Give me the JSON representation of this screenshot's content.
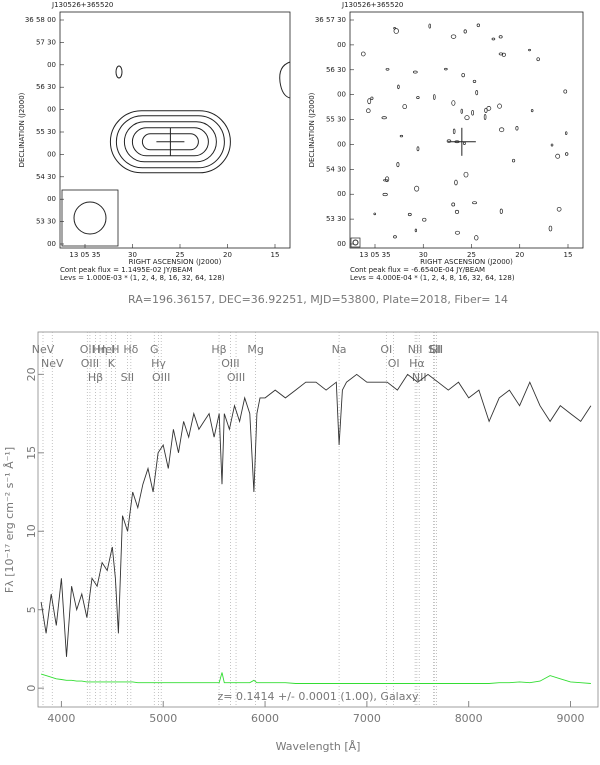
{
  "chart_data": [
    {
      "type": "contour-map",
      "title": "J130526+365520",
      "xlabel": "RIGHT ASCENSION (J2000)",
      "ylabel": "DECLINATION (J2000)",
      "xticklabels": [
        "13 05 35",
        "30",
        "25",
        "20",
        "15"
      ],
      "yticklabels": [
        "36 58 00",
        "57 30",
        "00",
        "56 30",
        "00",
        "55 30",
        "00",
        "54 30",
        "00",
        "53 30",
        "00"
      ],
      "peak": "Cont peak flux = 1.1495E-02 JY/BEAM",
      "levels": "Levs = 1.000E-03 * (1, 2, 4, 8, 16, 32, 64, 128)"
    },
    {
      "type": "noise-map",
      "title": "J130526+365520",
      "xlabel": "RIGHT ASCENSION (J2000)",
      "ylabel": "DECLINATION (J2000)",
      "xticklabels": [
        "13 05 35",
        "30",
        "25",
        "20",
        "15"
      ],
      "yticklabels": [
        "36 57 30",
        "00",
        "56 30",
        "00",
        "55 30",
        "00",
        "54 30",
        "00",
        "53 30",
        "00"
      ],
      "peak": "Cont peak flux = -6.6540E-04 JY/BEAM",
      "levels": "Levs = 4.000E-04 * (1, 2, 4, 8, 16, 32, 64, 128)"
    },
    {
      "type": "line",
      "title": "RA=196.36157, DEC=36.92251, MJD=53800, Plate=2018, Fiber= 14",
      "annotation": "z= 0.1414 +/- 0.0001 (1.00), Galaxy",
      "xlabel": "Wavelength [Å]",
      "ylabel": "Fλ [10⁻¹⁷ erg cm⁻² s⁻¹ Å⁻¹]",
      "xlim": [
        3770,
        9270
      ],
      "ylim": [
        -1.2,
        22.7
      ],
      "xticks": [
        4000,
        5000,
        6000,
        7000,
        8000,
        9000
      ],
      "yticks": [
        0,
        5,
        10,
        15,
        20
      ],
      "x": [
        3800,
        3850,
        3900,
        3950,
        4000,
        4050,
        4100,
        4150,
        4200,
        4250,
        4300,
        4350,
        4400,
        4450,
        4500,
        4530,
        4560,
        4600,
        4650,
        4700,
        4750,
        4800,
        4850,
        4900,
        4950,
        5000,
        5050,
        5100,
        5150,
        5200,
        5250,
        5300,
        5350,
        5400,
        5450,
        5500,
        5550,
        5577,
        5600,
        5650,
        5700,
        5750,
        5800,
        5850,
        5890,
        5920,
        5950,
        6000,
        6100,
        6200,
        6300,
        6400,
        6500,
        6600,
        6700,
        6727,
        6760,
        6800,
        6900,
        7000,
        7100,
        7200,
        7300,
        7400,
        7500,
        7600,
        7700,
        7800,
        7900,
        8000,
        8100,
        8200,
        8300,
        8400,
        8500,
        8600,
        8700,
        8800,
        8900,
        9000,
        9100,
        9200
      ],
      "series": [
        {
          "color": "#333333",
          "values": [
            5.5,
            3.5,
            6,
            4,
            7,
            2,
            6.5,
            5,
            6,
            4.5,
            7,
            6.5,
            8,
            7.5,
            9,
            7,
            3.5,
            11,
            10,
            12.5,
            11.5,
            13,
            14,
            12.5,
            15,
            15.5,
            14,
            16.5,
            15,
            17,
            16,
            17.5,
            16.5,
            17,
            17.5,
            16,
            17.5,
            13,
            17.5,
            16.5,
            18,
            17,
            18.5,
            17.5,
            12.5,
            17.5,
            18.5,
            18.5,
            19,
            18.5,
            19,
            19.5,
            19.5,
            19,
            19.5,
            15.5,
            19,
            19.5,
            20,
            19.5,
            19.5,
            19.5,
            19,
            20,
            19.5,
            20,
            19.5,
            19,
            19.5,
            18.5,
            19,
            17,
            18.5,
            19,
            18,
            19.5,
            18,
            17,
            18,
            17.5,
            17,
            18
          ]
        },
        {
          "color": "#33dd33",
          "values": [
            0.9,
            0.8,
            0.7,
            0.6,
            0.55,
            0.5,
            0.5,
            0.45,
            0.45,
            0.4,
            0.4,
            0.4,
            0.4,
            0.4,
            0.4,
            0.4,
            0.4,
            0.4,
            0.4,
            0.4,
            0.35,
            0.35,
            0.35,
            0.35,
            0.35,
            0.35,
            0.35,
            0.35,
            0.35,
            0.35,
            0.35,
            0.35,
            0.35,
            0.35,
            0.35,
            0.35,
            0.35,
            1.0,
            0.35,
            0.35,
            0.35,
            0.35,
            0.35,
            0.35,
            0.5,
            0.35,
            0.35,
            0.35,
            0.35,
            0.35,
            0.3,
            0.3,
            0.3,
            0.3,
            0.3,
            0.3,
            0.3,
            0.3,
            0.3,
            0.3,
            0.3,
            0.3,
            0.3,
            0.3,
            0.3,
            0.3,
            0.3,
            0.3,
            0.3,
            0.3,
            0.3,
            0.3,
            0.35,
            0.35,
            0.4,
            0.35,
            0.45,
            0.8,
            0.6,
            0.4,
            0.35,
            0.3
          ]
        }
      ],
      "lines": [
        {
          "label": "NeV",
          "wavelength": 3819
        },
        {
          "label": "NeV",
          "wavelength": 3910
        },
        {
          "label": "OII",
          "wavelength": 4254
        },
        {
          "label": "OIII",
          "wavelength": 4280
        },
        {
          "label": "Hβ",
          "wavelength": 4335
        },
        {
          "label": "Hη",
          "wavelength": 4380
        },
        {
          "label": "HeI",
          "wavelength": 4439
        },
        {
          "label": "K",
          "wavelength": 4490
        },
        {
          "label": "H",
          "wavelength": 4530
        },
        {
          "label": "SII",
          "wavelength": 4648
        },
        {
          "label": "Hδ",
          "wavelength": 4682
        },
        {
          "label": "G",
          "wavelength": 4912
        },
        {
          "label": "Hγ",
          "wavelength": 4954
        },
        {
          "label": "OIII",
          "wavelength": 4980
        },
        {
          "label": "Hβ",
          "wavelength": 5548
        },
        {
          "label": "OIII",
          "wavelength": 5660
        },
        {
          "label": "OIII",
          "wavelength": 5715
        },
        {
          "label": "Mg",
          "wavelength": 5907
        },
        {
          "label": "Na",
          "wavelength": 6727
        },
        {
          "label": "OI",
          "wavelength": 7191
        },
        {
          "label": "OI",
          "wavelength": 7263
        },
        {
          "label": "NII",
          "wavelength": 7474
        },
        {
          "label": "Hα",
          "wavelength": 7491
        },
        {
          "label": "NII",
          "wavelength": 7514
        },
        {
          "label": "Li",
          "wavelength": 7656
        },
        {
          "label": "SII",
          "wavelength": 7666
        },
        {
          "label": "SII",
          "wavelength": 7683
        }
      ]
    }
  ]
}
